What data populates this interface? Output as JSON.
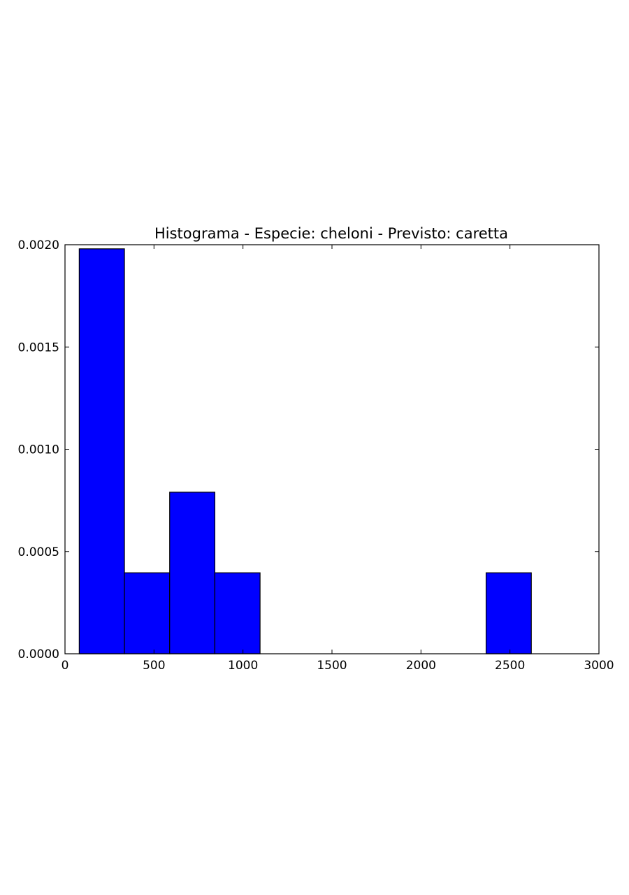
{
  "chart_data": {
    "type": "bar",
    "title": "Histograma - Especie: cheloni - Previsto: caretta",
    "xlabel": "",
    "ylabel": "",
    "xlim": [
      0,
      3000
    ],
    "ylim": [
      0,
      0.002
    ],
    "x_ticks": [
      0,
      500,
      1000,
      1500,
      2000,
      2500,
      3000
    ],
    "x_tick_labels": [
      "0",
      "500",
      "1000",
      "1500",
      "2000",
      "2500",
      "3000"
    ],
    "y_ticks": [
      0,
      0.0005,
      0.001,
      0.0015,
      0.002
    ],
    "y_tick_labels": [
      "0.0000",
      "0.0005",
      "0.0010",
      "0.0015",
      "0.0020"
    ],
    "grid": false,
    "legend": "none",
    "bins": [
      {
        "x0": 80,
        "x1": 334,
        "value": 0.00198
      },
      {
        "x0": 334,
        "x1": 588,
        "value": 0.000396
      },
      {
        "x0": 588,
        "x1": 842,
        "value": 0.00079
      },
      {
        "x0": 842,
        "x1": 1096,
        "value": 0.000396
      },
      {
        "x0": 1096,
        "x1": 1350,
        "value": 0
      },
      {
        "x0": 1350,
        "x1": 1604,
        "value": 0
      },
      {
        "x0": 1604,
        "x1": 1858,
        "value": 0
      },
      {
        "x0": 1858,
        "x1": 2112,
        "value": 0
      },
      {
        "x0": 2112,
        "x1": 2366,
        "value": 0
      },
      {
        "x0": 2366,
        "x1": 2620,
        "value": 0.000396
      }
    ],
    "colors": {
      "bar_fill": "#0000ff",
      "bar_edge": "#000000",
      "axes": "#000000"
    }
  }
}
